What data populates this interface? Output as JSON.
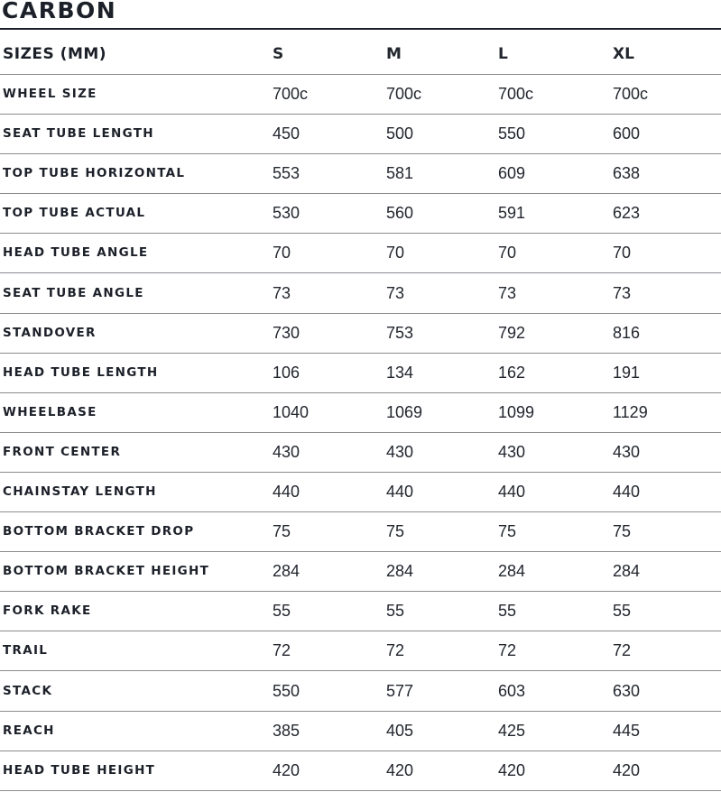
{
  "title": "CARBON",
  "header": {
    "label": "SIZES (MM)",
    "sizes": [
      "S",
      "M",
      "L",
      "XL"
    ]
  },
  "rows": [
    {
      "label": "WHEEL SIZE",
      "values": [
        "700c",
        "700c",
        "700c",
        "700c"
      ]
    },
    {
      "label": "SEAT TUBE LENGTH",
      "values": [
        "450",
        "500",
        "550",
        "600"
      ]
    },
    {
      "label": "TOP TUBE HORIZONTAL",
      "values": [
        "553",
        "581",
        "609",
        "638"
      ]
    },
    {
      "label": "TOP TUBE ACTUAL",
      "values": [
        "530",
        "560",
        "591",
        "623"
      ]
    },
    {
      "label": "HEAD TUBE ANGLE",
      "values": [
        "70",
        "70",
        "70",
        "70"
      ]
    },
    {
      "label": "SEAT TUBE ANGLE",
      "values": [
        "73",
        "73",
        "73",
        "73"
      ]
    },
    {
      "label": "STANDOVER",
      "values": [
        "730",
        "753",
        "792",
        "816"
      ]
    },
    {
      "label": "HEAD TUBE LENGTH",
      "values": [
        "106",
        "134",
        "162",
        "191"
      ]
    },
    {
      "label": "WHEELBASE",
      "values": [
        "1040",
        "1069",
        "1099",
        "1129"
      ]
    },
    {
      "label": "FRONT CENTER",
      "values": [
        "430",
        "430",
        "430",
        "430"
      ]
    },
    {
      "label": "CHAINSTAY LENGTH",
      "values": [
        "440",
        "440",
        "440",
        "440"
      ]
    },
    {
      "label": "BOTTOM BRACKET DROP",
      "values": [
        "75",
        "75",
        "75",
        "75"
      ]
    },
    {
      "label": "BOTTOM BRACKET HEIGHT",
      "values": [
        "284",
        "284",
        "284",
        "284"
      ]
    },
    {
      "label": "FORK RAKE",
      "values": [
        "55",
        "55",
        "55",
        "55"
      ]
    },
    {
      "label": "TRAIL",
      "values": [
        "72",
        "72",
        "72",
        "72"
      ]
    },
    {
      "label": "STACK",
      "values": [
        "550",
        "577",
        "603",
        "630"
      ]
    },
    {
      "label": "REACH",
      "values": [
        "385",
        "405",
        "425",
        "445"
      ]
    },
    {
      "label": "HEAD TUBE HEIGHT",
      "values": [
        "420",
        "420",
        "420",
        "420"
      ]
    }
  ]
}
